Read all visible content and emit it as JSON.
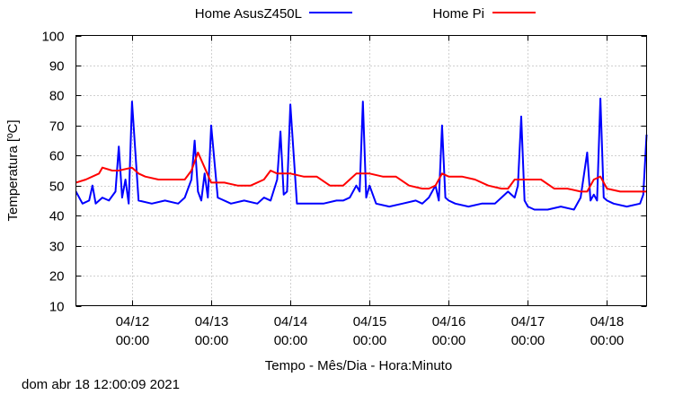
{
  "chart_data": {
    "type": "line",
    "xlabel": "Tempo - Mês/Dia - Hora:Minuto",
    "ylabel": "Temperatura [ºC]",
    "timestamp": "dom abr 18 12:00:09 2021",
    "xlim": [
      "2021-04-11 07:00",
      "2021-04-18 12:00"
    ],
    "ylim": [
      10,
      100
    ],
    "yticks": [
      10,
      20,
      30,
      40,
      50,
      60,
      70,
      80,
      90,
      100
    ],
    "xticks": [
      {
        "date": "2021-04-12 00:00",
        "line1": "04/12",
        "line2": "00:00"
      },
      {
        "date": "2021-04-13 00:00",
        "line1": "04/13",
        "line2": "00:00"
      },
      {
        "date": "2021-04-14 00:00",
        "line1": "04/14",
        "line2": "00:00"
      },
      {
        "date": "2021-04-15 00:00",
        "line1": "04/15",
        "line2": "00:00"
      },
      {
        "date": "2021-04-16 00:00",
        "line1": "04/16",
        "line2": "00:00"
      },
      {
        "date": "2021-04-17 00:00",
        "line1": "04/17",
        "line2": "00:00"
      },
      {
        "date": "2021-04-18 00:00",
        "line1": "04/18",
        "line2": "00:00"
      }
    ],
    "grid": true,
    "legend_position": "top",
    "series": [
      {
        "name": "Home AsusZ450L",
        "color": "#0000ff",
        "x": [
          "2021-04-11 07:00",
          "2021-04-11 09:00",
          "2021-04-11 11:00",
          "2021-04-11 12:00",
          "2021-04-11 13:00",
          "2021-04-11 15:00",
          "2021-04-11 17:00",
          "2021-04-11 19:00",
          "2021-04-11 20:00",
          "2021-04-11 21:00",
          "2021-04-11 22:00",
          "2021-04-11 23:00",
          "2021-04-12 00:00",
          "2021-04-12 02:00",
          "2021-04-12 06:00",
          "2021-04-12 10:00",
          "2021-04-12 14:00",
          "2021-04-12 16:00",
          "2021-04-12 18:00",
          "2021-04-12 19:00",
          "2021-04-12 20:00",
          "2021-04-12 21:00",
          "2021-04-12 22:00",
          "2021-04-12 23:00",
          "2021-04-13 00:00",
          "2021-04-13 02:00",
          "2021-04-13 06:00",
          "2021-04-13 10:00",
          "2021-04-13 14:00",
          "2021-04-13 16:00",
          "2021-04-13 18:00",
          "2021-04-13 20:00",
          "2021-04-13 21:00",
          "2021-04-13 22:00",
          "2021-04-13 23:00",
          "2021-04-14 00:00",
          "2021-04-14 02:00",
          "2021-04-14 06:00",
          "2021-04-14 10:00",
          "2021-04-14 14:00",
          "2021-04-14 16:00",
          "2021-04-14 18:00",
          "2021-04-14 20:00",
          "2021-04-14 21:00",
          "2021-04-14 22:00",
          "2021-04-14 23:00",
          "2021-04-15 00:00",
          "2021-04-15 02:00",
          "2021-04-15 06:00",
          "2021-04-15 10:00",
          "2021-04-15 14:00",
          "2021-04-15 16:00",
          "2021-04-15 18:00",
          "2021-04-15 20:00",
          "2021-04-15 21:00",
          "2021-04-15 22:00",
          "2021-04-15 23:00",
          "2021-04-16 00:00",
          "2021-04-16 02:00",
          "2021-04-16 06:00",
          "2021-04-16 10:00",
          "2021-04-16 14:00",
          "2021-04-16 16:00",
          "2021-04-16 18:00",
          "2021-04-16 20:00",
          "2021-04-16 21:00",
          "2021-04-16 22:00",
          "2021-04-16 23:00",
          "2021-04-17 00:00",
          "2021-04-17 02:00",
          "2021-04-17 06:00",
          "2021-04-17 10:00",
          "2021-04-17 14:00",
          "2021-04-17 16:00",
          "2021-04-17 18:00",
          "2021-04-17 19:00",
          "2021-04-17 20:00",
          "2021-04-17 21:00",
          "2021-04-17 22:00",
          "2021-04-17 23:00",
          "2021-04-18 00:00",
          "2021-04-18 02:00",
          "2021-04-18 06:00",
          "2021-04-18 10:00",
          "2021-04-18 11:00",
          "2021-04-18 12:00"
        ],
        "y": [
          48,
          44,
          45,
          50,
          44,
          46,
          45,
          48,
          63,
          46,
          52,
          44,
          78,
          45,
          44,
          45,
          44,
          46,
          52,
          65,
          48,
          45,
          54,
          46,
          70,
          46,
          44,
          45,
          44,
          46,
          45,
          52,
          68,
          47,
          48,
          77,
          44,
          44,
          44,
          45,
          45,
          46,
          50,
          48,
          78,
          46,
          50,
          44,
          43,
          44,
          45,
          44,
          46,
          50,
          45,
          70,
          46,
          45,
          44,
          43,
          44,
          44,
          46,
          48,
          46,
          50,
          73,
          45,
          43,
          42,
          42,
          43,
          42,
          46,
          61,
          45,
          47,
          45,
          79,
          46,
          45,
          44,
          43,
          44,
          47,
          67
        ]
      },
      {
        "name": "Home Pi",
        "color": "#ff0000",
        "x": [
          "2021-04-11 07:00",
          "2021-04-11 10:00",
          "2021-04-11 14:00",
          "2021-04-11 15:00",
          "2021-04-11 18:00",
          "2021-04-11 20:00",
          "2021-04-12 00:00",
          "2021-04-12 02:00",
          "2021-04-12 04:00",
          "2021-04-12 08:00",
          "2021-04-12 12:00",
          "2021-04-12 16:00",
          "2021-04-12 18:00",
          "2021-04-12 20:00",
          "2021-04-12 22:00",
          "2021-04-13 00:00",
          "2021-04-13 04:00",
          "2021-04-13 08:00",
          "2021-04-13 12:00",
          "2021-04-13 16:00",
          "2021-04-13 18:00",
          "2021-04-13 20:00",
          "2021-04-13 22:00",
          "2021-04-14 00:00",
          "2021-04-14 04:00",
          "2021-04-14 08:00",
          "2021-04-14 12:00",
          "2021-04-14 16:00",
          "2021-04-14 18:00",
          "2021-04-14 20:00",
          "2021-04-14 22:00",
          "2021-04-15 00:00",
          "2021-04-15 04:00",
          "2021-04-15 08:00",
          "2021-04-15 12:00",
          "2021-04-15 16:00",
          "2021-04-15 18:00",
          "2021-04-15 20:00",
          "2021-04-15 22:00",
          "2021-04-16 00:00",
          "2021-04-16 04:00",
          "2021-04-16 08:00",
          "2021-04-16 12:00",
          "2021-04-16 16:00",
          "2021-04-16 18:00",
          "2021-04-16 20:00",
          "2021-04-16 22:00",
          "2021-04-17 00:00",
          "2021-04-17 04:00",
          "2021-04-17 08:00",
          "2021-04-17 12:00",
          "2021-04-17 16:00",
          "2021-04-17 18:00",
          "2021-04-17 20:00",
          "2021-04-17 22:00",
          "2021-04-18 00:00",
          "2021-04-18 04:00",
          "2021-04-18 08:00",
          "2021-04-18 12:00"
        ],
        "y": [
          51,
          52,
          54,
          56,
          55,
          55,
          56,
          54,
          53,
          52,
          52,
          52,
          55,
          61,
          56,
          51,
          51,
          50,
          50,
          52,
          55,
          54,
          54,
          54,
          53,
          53,
          50,
          50,
          52,
          54,
          54,
          54,
          53,
          53,
          50,
          49,
          49,
          50,
          54,
          53,
          53,
          52,
          50,
          49,
          49,
          52,
          52,
          52,
          52,
          49,
          49,
          48,
          48,
          52,
          53,
          49,
          48,
          48,
          48
        ]
      }
    ]
  }
}
